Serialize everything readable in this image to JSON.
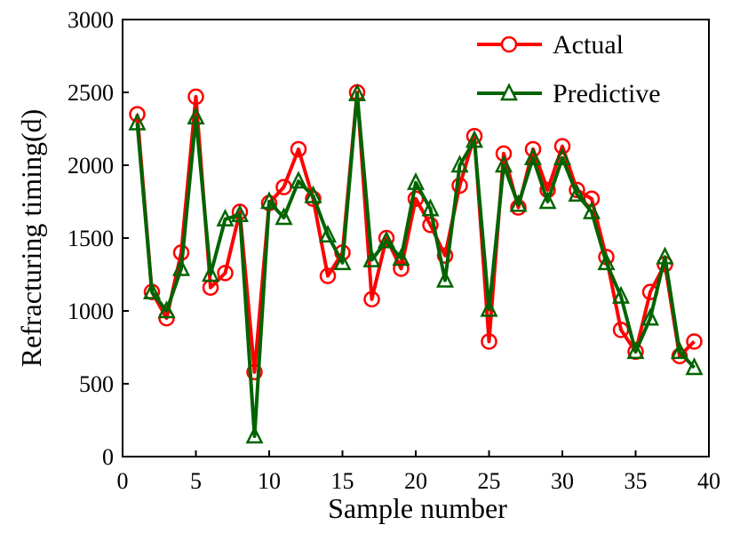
{
  "chart_data": {
    "type": "line",
    "xlabel": "Sample number",
    "ylabel": "Refracturing timing(d)",
    "xlim": [
      0,
      40
    ],
    "ylim": [
      0,
      3000
    ],
    "xticks": [
      0,
      5,
      10,
      15,
      20,
      25,
      30,
      35,
      40
    ],
    "yticks": [
      0,
      500,
      1000,
      1500,
      2000,
      2500,
      3000
    ],
    "grid": false,
    "legend_position": "top-right",
    "x": [
      1,
      2,
      3,
      4,
      5,
      6,
      7,
      8,
      9,
      10,
      11,
      12,
      13,
      14,
      15,
      16,
      17,
      18,
      19,
      20,
      21,
      22,
      23,
      24,
      25,
      26,
      27,
      28,
      29,
      30,
      31,
      32,
      33,
      34,
      35,
      36,
      37,
      38,
      39
    ],
    "series": [
      {
        "name": "Actual",
        "color": "#ff0000",
        "marker": "circle",
        "values": [
          2350,
          1130,
          950,
          1400,
          2470,
          1160,
          1260,
          1680,
          580,
          1740,
          1850,
          2110,
          1770,
          1240,
          1400,
          2500,
          1080,
          1500,
          1290,
          1770,
          1590,
          1380,
          1860,
          2200,
          790,
          2080,
          1710,
          2110,
          1830,
          2130,
          1830,
          1770,
          1370,
          870,
          720,
          1130,
          1320,
          690,
          790
        ]
      },
      {
        "name": "Predictive",
        "color": "#006400",
        "marker": "triangle",
        "values": [
          2290,
          1130,
          1000,
          1290,
          2330,
          1250,
          1630,
          1660,
          140,
          1750,
          1640,
          1890,
          1790,
          1520,
          1330,
          2490,
          1350,
          1480,
          1360,
          1880,
          1700,
          1210,
          2000,
          2170,
          1010,
          2000,
          1730,
          2050,
          1750,
          2050,
          1800,
          1680,
          1330,
          1100,
          720,
          950,
          1370,
          720,
          610
        ]
      }
    ]
  }
}
